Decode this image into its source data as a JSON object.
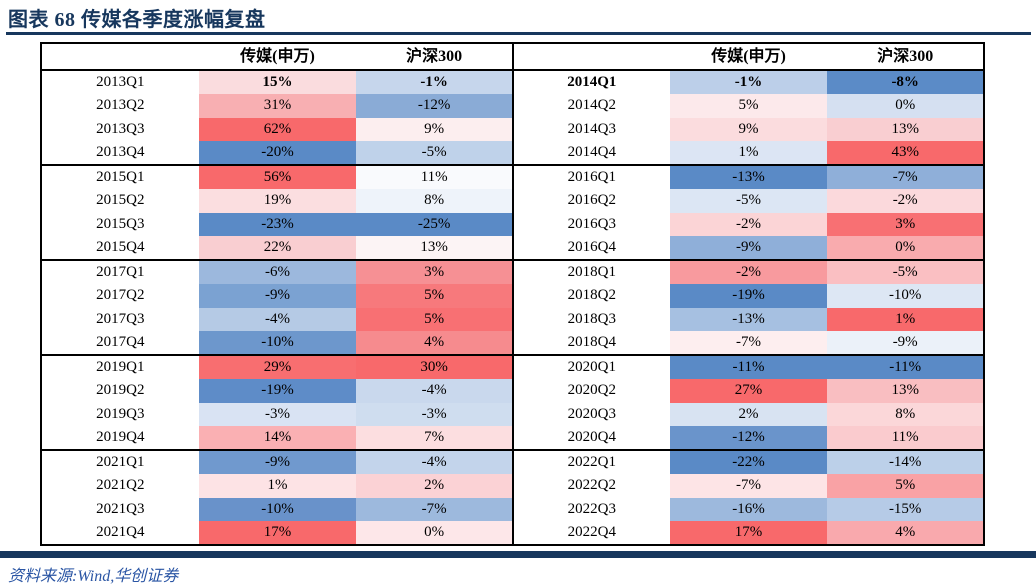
{
  "figure": {
    "title": "图表 68 传媒各季度涨幅复盘",
    "source": "资料来源:Wind,华创证券"
  },
  "colors": {
    "accent_navy": "#17375D",
    "source_text_blue": "#2A55A4",
    "heat_strong_red": "#F8696B",
    "heat_strong_blue": "#5A8AC6",
    "heat_neutral": "#FCFCFF",
    "table_border": "#000000"
  },
  "table": {
    "headers": {
      "quarter": "",
      "media": "传媒(申万)",
      "hs300": "沪深300"
    },
    "left_rows": [
      {
        "q": "2013Q1",
        "m": "15%",
        "mc": "#FADCDE",
        "h": "-1%",
        "hc": "#C6D6EC",
        "bold_q": false,
        "bold_v": true
      },
      {
        "q": "2013Q2",
        "m": "31%",
        "mc": "#F8AFB2",
        "h": "-12%",
        "hc": "#8AABD6"
      },
      {
        "q": "2013Q3",
        "m": "62%",
        "mc": "#F8696B",
        "h": "9%",
        "hc": "#FCEEEF"
      },
      {
        "q": "2013Q4",
        "m": "-20%",
        "mc": "#5A8AC6",
        "h": "-5%",
        "hc": "#BFD2EA"
      },
      {
        "q": "2015Q1",
        "m": "56%",
        "mc": "#F8696B",
        "h": "11%",
        "hc": "#F9FAFD"
      },
      {
        "q": "2015Q2",
        "m": "19%",
        "mc": "#FBDEE0",
        "h": "8%",
        "hc": "#EEF3FA"
      },
      {
        "q": "2015Q3",
        "m": "-23%",
        "mc": "#5A8AC6",
        "h": "-25%",
        "hc": "#5A8AC6"
      },
      {
        "q": "2015Q4",
        "m": "22%",
        "mc": "#F9CED1",
        "h": "13%",
        "hc": "#FCF4F5"
      },
      {
        "q": "2017Q1",
        "m": "-6%",
        "mc": "#9CB8DD",
        "h": "3%",
        "hc": "#F69094"
      },
      {
        "q": "2017Q2",
        "m": "-9%",
        "mc": "#7BA2D2",
        "h": "5%",
        "hc": "#F7797C"
      },
      {
        "q": "2017Q3",
        "m": "-4%",
        "mc": "#B5CAE5",
        "h": "5%",
        "hc": "#F87073"
      },
      {
        "q": "2017Q4",
        "m": "-10%",
        "mc": "#6D97CC",
        "h": "4%",
        "hc": "#F68B8E"
      },
      {
        "q": "2019Q1",
        "m": "29%",
        "mc": "#F86E70",
        "h": "30%",
        "hc": "#F8696B"
      },
      {
        "q": "2019Q2",
        "m": "-19%",
        "mc": "#5E8CC8",
        "h": "-4%",
        "hc": "#C9D8ED"
      },
      {
        "q": "2019Q3",
        "m": "-3%",
        "mc": "#D9E3F3",
        "h": "-3%",
        "hc": "#CFDDEF"
      },
      {
        "q": "2019Q4",
        "m": "14%",
        "mc": "#FAB0B3",
        "h": "7%",
        "hc": "#FCDEE0"
      },
      {
        "q": "2021Q1",
        "m": "-9%",
        "mc": "#7099CE",
        "h": "-4%",
        "hc": "#C3D4EB"
      },
      {
        "q": "2021Q2",
        "m": "1%",
        "mc": "#FDE3E5",
        "h": "2%",
        "hc": "#FBD2D5"
      },
      {
        "q": "2021Q3",
        "m": "-10%",
        "mc": "#6992CA",
        "h": "-7%",
        "hc": "#9DB9DD"
      },
      {
        "q": "2021Q4",
        "m": "17%",
        "mc": "#F8696B",
        "h": "0%",
        "hc": "#FDE7E9"
      }
    ],
    "right_rows": [
      {
        "q": "2014Q1",
        "m": "-1%",
        "mc": "#BCCFE9",
        "h": "-8%",
        "hc": "#5B8BC7",
        "bold_q": true,
        "bold_v": true
      },
      {
        "q": "2014Q2",
        "m": "5%",
        "mc": "#FCE9EB",
        "h": "0%",
        "hc": "#D5E0F1"
      },
      {
        "q": "2014Q3",
        "m": "9%",
        "mc": "#FBDCDE",
        "h": "13%",
        "hc": "#F9CED1"
      },
      {
        "q": "2014Q4",
        "m": "1%",
        "mc": "#DCE5F4",
        "h": "43%",
        "hc": "#F8696B"
      },
      {
        "q": "2016Q1",
        "m": "-13%",
        "mc": "#5A8AC6",
        "h": "-7%",
        "hc": "#8FAFD9"
      },
      {
        "q": "2016Q2",
        "m": "-5%",
        "mc": "#DCE6F4",
        "h": "-2%",
        "hc": "#FBD9DC"
      },
      {
        "q": "2016Q3",
        "m": "-2%",
        "mc": "#FBD4D6",
        "h": "3%",
        "hc": "#F87073"
      },
      {
        "q": "2016Q4",
        "m": "-9%",
        "mc": "#8FAFD9",
        "h": "0%",
        "hc": "#F9ABAE"
      },
      {
        "q": "2018Q1",
        "m": "-2%",
        "mc": "#F89A9E",
        "h": "-5%",
        "hc": "#FABFC2"
      },
      {
        "q": "2018Q2",
        "m": "-19%",
        "mc": "#5A8AC6",
        "h": "-10%",
        "hc": "#DDE7F4"
      },
      {
        "q": "2018Q3",
        "m": "-13%",
        "mc": "#A6C0E1",
        "h": "1%",
        "hc": "#F8696B"
      },
      {
        "q": "2018Q4",
        "m": "-7%",
        "mc": "#FDEEEF",
        "h": "-9%",
        "hc": "#EBF1F9"
      },
      {
        "q": "2020Q1",
        "m": "-11%",
        "mc": "#5A8AC6",
        "h": "-11%",
        "hc": "#5A8AC6"
      },
      {
        "q": "2020Q2",
        "m": "27%",
        "mc": "#F8696B",
        "h": "13%",
        "hc": "#F9BEC1"
      },
      {
        "q": "2020Q3",
        "m": "2%",
        "mc": "#D8E3F2",
        "h": "8%",
        "hc": "#FBD7D9"
      },
      {
        "q": "2020Q4",
        "m": "-12%",
        "mc": "#6A94CB",
        "h": "11%",
        "hc": "#FACBCE"
      },
      {
        "q": "2022Q1",
        "m": "-22%",
        "mc": "#5A8AC6",
        "h": "-14%",
        "hc": "#BCD0E9"
      },
      {
        "q": "2022Q2",
        "m": "-7%",
        "mc": "#FDE4E6",
        "h": "5%",
        "hc": "#F9A2A5"
      },
      {
        "q": "2022Q3",
        "m": "-16%",
        "mc": "#9DB9DD",
        "h": "-15%",
        "hc": "#B6CBE7"
      },
      {
        "q": "2022Q4",
        "m": "17%",
        "mc": "#F8696B",
        "h": "4%",
        "hc": "#F9A9AD"
      }
    ]
  },
  "chart_data": {
    "type": "heatmap",
    "title": "图表 68 传媒各季度涨幅复盘",
    "unit": "%",
    "columns": [
      "传媒(申万)",
      "沪深300"
    ],
    "legend_note": "red = higher/positive return, blue = lower/negative return (Excel 3-color scale)",
    "left_half": {
      "quarters": [
        "2013Q1",
        "2013Q2",
        "2013Q3",
        "2013Q4",
        "2015Q1",
        "2015Q2",
        "2015Q3",
        "2015Q4",
        "2017Q1",
        "2017Q2",
        "2017Q3",
        "2017Q4",
        "2019Q1",
        "2019Q2",
        "2019Q3",
        "2019Q4",
        "2021Q1",
        "2021Q2",
        "2021Q3",
        "2021Q4"
      ],
      "media_sw": [
        15,
        31,
        62,
        -20,
        56,
        19,
        -23,
        22,
        -6,
        -9,
        -4,
        -10,
        29,
        -19,
        -3,
        14,
        -9,
        1,
        -10,
        17
      ],
      "hs300": [
        -1,
        -12,
        9,
        -5,
        11,
        8,
        -25,
        13,
        3,
        5,
        5,
        4,
        30,
        -4,
        -3,
        7,
        -4,
        2,
        -7,
        0
      ]
    },
    "right_half": {
      "quarters": [
        "2014Q1",
        "2014Q2",
        "2014Q3",
        "2014Q4",
        "2016Q1",
        "2016Q2",
        "2016Q3",
        "2016Q4",
        "2018Q1",
        "2018Q2",
        "2018Q3",
        "2018Q4",
        "2020Q1",
        "2020Q2",
        "2020Q3",
        "2020Q4",
        "2022Q1",
        "2022Q2",
        "2022Q3",
        "2022Q4"
      ],
      "media_sw": [
        -1,
        5,
        9,
        1,
        -13,
        -5,
        -2,
        -9,
        -2,
        -19,
        -13,
        -7,
        -11,
        27,
        2,
        -12,
        -22,
        -7,
        -16,
        17
      ],
      "hs300": [
        -8,
        0,
        13,
        43,
        -7,
        -2,
        3,
        0,
        -5,
        -10,
        1,
        -9,
        -11,
        13,
        8,
        11,
        -14,
        5,
        -15,
        4
      ]
    },
    "source": "资料来源:Wind,华创证券"
  }
}
